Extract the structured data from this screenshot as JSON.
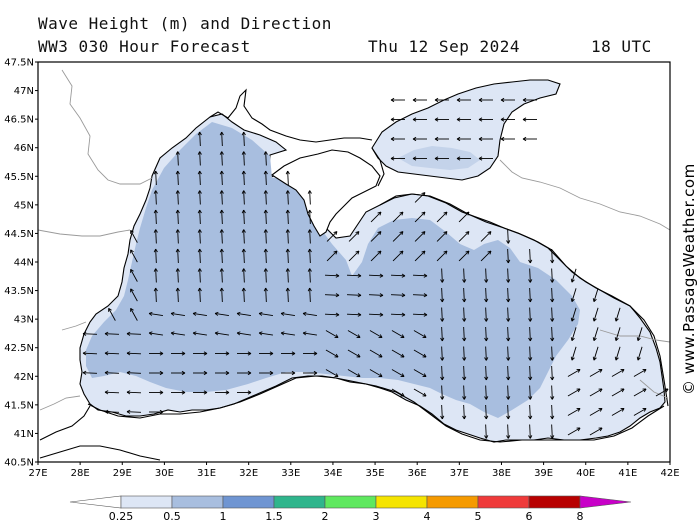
{
  "header": {
    "title": "Wave Height (m) and Direction",
    "model": "WW3 030 Hour Forecast",
    "date": "Thu 12 Sep 2024",
    "time": "18 UTC"
  },
  "credit": "© www.PassageWeather.com",
  "map": {
    "region": "Black Sea",
    "lat_labels": [
      "47.5N",
      "47N",
      "46.5N",
      "46N",
      "45.5N",
      "45N",
      "44.5N",
      "44N",
      "43.5N",
      "43N",
      "42.5N",
      "42N",
      "41.5N",
      "41N",
      "40.5N"
    ],
    "lon_labels": [
      "27E",
      "28E",
      "29E",
      "30E",
      "31E",
      "32E",
      "33E",
      "34E",
      "35E",
      "36E",
      "37E",
      "38E",
      "39E",
      "40E",
      "41E",
      "42E"
    ],
    "lat_range": [
      40.5,
      47.5
    ],
    "lon_range": [
      27,
      42
    ],
    "colors": {
      "land": "#ffffff",
      "sea_lt_0_5": "#dde6f5",
      "sea_0_5_1": "#a8bedf",
      "coastline": "#000000",
      "border": "#999999"
    }
  },
  "colorbar": {
    "labels": [
      "0.25",
      "0.5",
      "1",
      "1.5",
      "2",
      "3",
      "4",
      "5",
      "6",
      "8"
    ],
    "colors": [
      "#ffffff",
      "#dde6f5",
      "#a8bedf",
      "#6f95d2",
      "#2fb58c",
      "#5fe85f",
      "#f5e400",
      "#f59a00",
      "#ef3a3a",
      "#b80000",
      "#c800c8"
    ]
  }
}
